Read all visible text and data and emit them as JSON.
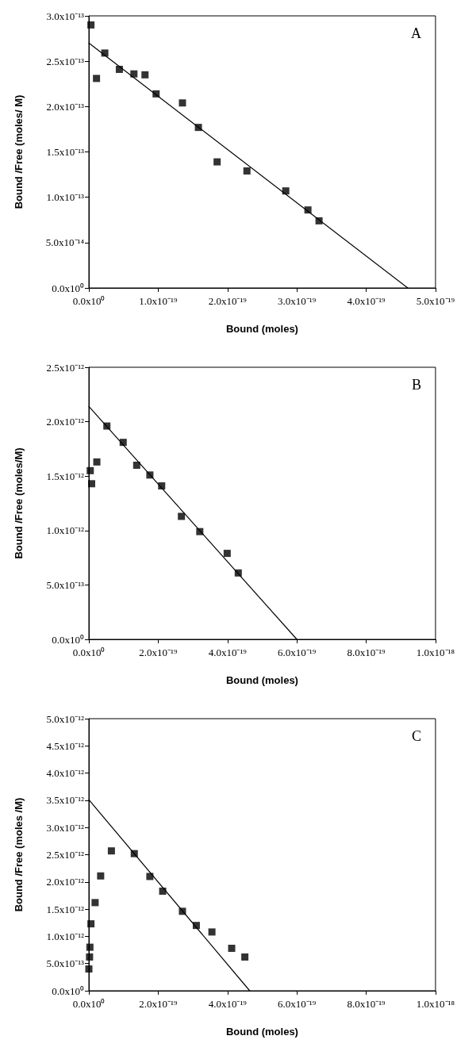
{
  "chart_data": [
    {
      "type": "scatter",
      "title": "A",
      "xlabel": "Bound (moles)",
      "ylabel": "Bound /Free (moles/ M)",
      "marker": "square",
      "xlim": [
        0,
        5e-19
      ],
      "ylim": [
        0,
        3e-13
      ],
      "xticks": [
        {
          "value": 0,
          "label": "0.0x10⁰"
        },
        {
          "value": 1e-19,
          "label": "1.0x10⁻¹⁹"
        },
        {
          "value": 2e-19,
          "label": "2.0x10⁻¹⁹"
        },
        {
          "value": 3e-19,
          "label": "3.0x10⁻¹⁹"
        },
        {
          "value": 4e-19,
          "label": "4.0x10⁻¹⁹"
        },
        {
          "value": 5e-19,
          "label": "5.0x10⁻¹⁹"
        }
      ],
      "yticks": [
        {
          "value": 0,
          "label": "0.0x10⁰"
        },
        {
          "value": 5e-14,
          "label": "5.0x10⁻¹⁴"
        },
        {
          "value": 1e-13,
          "label": "1.0x10⁻¹³"
        },
        {
          "value": 1.5e-13,
          "label": "1.5x10⁻¹³"
        },
        {
          "value": 2e-13,
          "label": "2.0x10⁻¹³"
        },
        {
          "value": 2.5e-13,
          "label": "2.5x10⁻¹³"
        },
        {
          "value": 3e-13,
          "label": "3.0x10⁻¹³"
        }
      ],
      "series": [
        {
          "color": "#000000",
          "x": [
            3e-21,
            1.1e-20,
            2.3e-20,
            4.4e-20,
            6.5e-20,
            8.1e-20,
            9.7e-20,
            1.35e-19,
            1.58e-19,
            1.85e-19,
            2.28e-19,
            2.84e-19,
            3.16e-19,
            3.32e-19
          ],
          "values": [
            2.9e-13,
            2.31e-13,
            2.59e-13,
            2.41e-13,
            2.36e-13,
            2.35e-13,
            2.14e-13,
            2.04e-13,
            1.77e-13,
            1.39e-13,
            1.29e-13,
            1.07e-13,
            8.6e-14,
            7.4e-14
          ]
        },
        {
          "type": "line",
          "color": "#000000",
          "marker": "none",
          "line_style": "solid",
          "x": [
            0,
            4.6e-19
          ],
          "values": [
            2.7e-13,
            0
          ]
        }
      ]
    },
    {
      "type": "scatter",
      "title": "B",
      "xlabel": "Bound (moles)",
      "ylabel": "Bound /Free (moles/M)",
      "marker": "square",
      "xlim": [
        0,
        1e-18
      ],
      "ylim": [
        0,
        2.5e-12
      ],
      "xticks": [
        {
          "value": 0,
          "label": "0.0x10⁰"
        },
        {
          "value": 2e-19,
          "label": "2.0x10⁻¹⁹"
        },
        {
          "value": 4e-19,
          "label": "4.0x10⁻¹⁹"
        },
        {
          "value": 6e-19,
          "label": "6.0x10⁻¹⁹"
        },
        {
          "value": 8e-19,
          "label": "8.0x10⁻¹⁹"
        },
        {
          "value": 1e-18,
          "label": "1.0x10⁻¹⁸"
        }
      ],
      "yticks": [
        {
          "value": 0,
          "label": "0.0x10⁰"
        },
        {
          "value": 5e-13,
          "label": "5.0x10⁻¹³"
        },
        {
          "value": 1e-12,
          "label": "1.0x10⁻¹²"
        },
        {
          "value": 1.5e-12,
          "label": "1.5x10⁻¹²"
        },
        {
          "value": 2e-12,
          "label": "2.0x10⁻¹²"
        },
        {
          "value": 2.5e-12,
          "label": "2.5x10⁻¹²"
        }
      ],
      "series": [
        {
          "color": "#000000",
          "x": [
            4e-21,
            8e-21,
            2.3e-20,
            5.2e-20,
            9.9e-20,
            1.38e-19,
            1.76e-19,
            2.1e-19,
            2.67e-19,
            3.2e-19,
            3.99e-19,
            4.31e-19
          ],
          "values": [
            1.55e-12,
            1.43e-12,
            1.63e-12,
            1.96e-12,
            1.81e-12,
            1.6e-12,
            1.51e-12,
            1.41e-12,
            1.13e-12,
            9.9e-13,
            7.9e-13,
            6.1e-13
          ]
        },
        {
          "type": "line",
          "color": "#000000",
          "marker": "none",
          "line_style": "solid",
          "x": [
            0,
            6e-19
          ],
          "values": [
            2.14e-12,
            0
          ]
        }
      ]
    },
    {
      "type": "scatter",
      "title": "C",
      "xlabel": "Bound (moles)",
      "ylabel": "Bound /Free (moles /M)",
      "marker": "square",
      "xlim": [
        0,
        1e-18
      ],
      "ylim": [
        0,
        5e-12
      ],
      "xticks": [
        {
          "value": 0,
          "label": "0.0x10⁰"
        },
        {
          "value": 2e-19,
          "label": "2.0x10⁻¹⁹"
        },
        {
          "value": 4e-19,
          "label": "4.0x10⁻¹⁹"
        },
        {
          "value": 6e-19,
          "label": "6.0x10⁻¹⁹"
        },
        {
          "value": 8e-19,
          "label": "8.0x10⁻¹⁹"
        },
        {
          "value": 1e-18,
          "label": "1.0x10⁻¹⁸"
        }
      ],
      "yticks": [
        {
          "value": 0,
          "label": "0.0x10⁰"
        },
        {
          "value": 5e-13,
          "label": "5.0x10⁻¹³"
        },
        {
          "value": 1e-12,
          "label": "1.0x10⁻¹²"
        },
        {
          "value": 1.5e-12,
          "label": "1.5x10⁻¹²"
        },
        {
          "value": 2e-12,
          "label": "2.0x10⁻¹²"
        },
        {
          "value": 2.5e-12,
          "label": "2.5x10⁻¹²"
        },
        {
          "value": 3e-12,
          "label": "3.0x10⁻¹²"
        },
        {
          "value": 3.5e-12,
          "label": "3.5x10⁻¹²"
        },
        {
          "value": 4e-12,
          "label": "4.0x10⁻¹²"
        },
        {
          "value": 4.5e-12,
          "label": "4.5x10⁻¹²"
        },
        {
          "value": 5e-12,
          "label": "5.0x10⁻¹²"
        }
      ],
      "series": [
        {
          "color": "#000000",
          "x": [
            0,
            2e-21,
            3e-21,
            6e-21,
            1.8e-20,
            3.4e-20,
            6.5e-20,
            1.31e-19,
            1.76e-19,
            2.13e-19,
            2.7e-19,
            3.1e-19,
            3.55e-19,
            4.12e-19,
            4.5e-19
          ],
          "values": [
            4e-13,
            6.2e-13,
            8e-13,
            1.23e-12,
            1.62e-12,
            2.11e-12,
            2.57e-12,
            2.52e-12,
            2.1e-12,
            1.83e-12,
            1.46e-12,
            1.2e-12,
            1.08e-12,
            7.8e-13,
            6.2e-13
          ]
        },
        {
          "type": "line",
          "color": "#000000",
          "marker": "none",
          "line_style": "solid",
          "x": [
            0,
            4.64e-19
          ],
          "values": [
            3.51e-12,
            0
          ]
        }
      ]
    }
  ]
}
